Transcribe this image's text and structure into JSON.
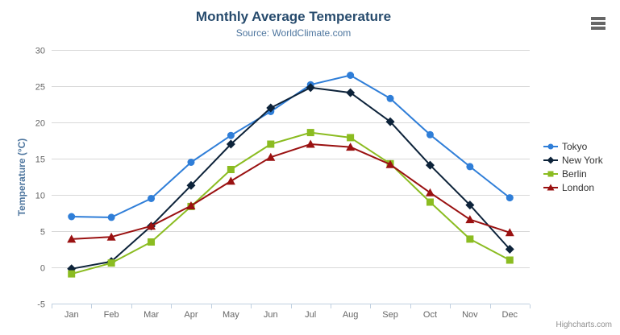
{
  "title": "Monthly Average Temperature",
  "subtitle": "Source: WorldClimate.com",
  "credits": "Highcharts.com",
  "menu_icon": "hamburger-icon",
  "colors": {
    "background": "#ffffff",
    "title_text": "#274b6d",
    "subtitle_text": "#4d759e",
    "axis_title_text": "#4d759e",
    "axis_label_text": "#666666",
    "gridline": "#d8d8d8",
    "axis_line": "#c0d0e0",
    "legend_text": "#333333",
    "credits_text": "#909090",
    "menu_icon": "#666666"
  },
  "chart_data": {
    "type": "line",
    "title": "Monthly Average Temperature",
    "subtitle": "Source: WorldClimate.com",
    "xlabel": "",
    "ylabel": "Temperature (°C)",
    "ylim": [
      -5,
      30
    ],
    "ytick_interval": 5,
    "yticks": [
      30,
      25,
      20,
      15,
      10,
      5,
      0,
      -5
    ],
    "grid": true,
    "legend_position": "right",
    "categories": [
      "Jan",
      "Feb",
      "Mar",
      "Apr",
      "May",
      "Jun",
      "Jul",
      "Aug",
      "Sep",
      "Oct",
      "Nov",
      "Dec"
    ],
    "series": [
      {
        "name": "Tokyo",
        "color": "#2f7ed8",
        "marker": "circle",
        "values": [
          7.0,
          6.9,
          9.5,
          14.5,
          18.2,
          21.5,
          25.2,
          26.5,
          23.3,
          18.3,
          13.9,
          9.6
        ]
      },
      {
        "name": "New York",
        "color": "#0d233a",
        "marker": "diamond",
        "values": [
          -0.2,
          0.8,
          5.7,
          11.3,
          17.0,
          22.0,
          24.8,
          24.1,
          20.1,
          14.1,
          8.6,
          2.5
        ]
      },
      {
        "name": "Berlin",
        "color": "#8bbc21",
        "marker": "square",
        "values": [
          -0.9,
          0.6,
          3.5,
          8.4,
          13.5,
          17.0,
          18.6,
          17.9,
          14.3,
          9.0,
          3.9,
          1.0
        ]
      },
      {
        "name": "London",
        "color": "#9a1111",
        "marker": "triangle",
        "values": [
          3.9,
          4.2,
          5.7,
          8.5,
          11.9,
          15.2,
          17.0,
          16.6,
          14.2,
          10.3,
          6.6,
          4.8
        ]
      }
    ]
  }
}
